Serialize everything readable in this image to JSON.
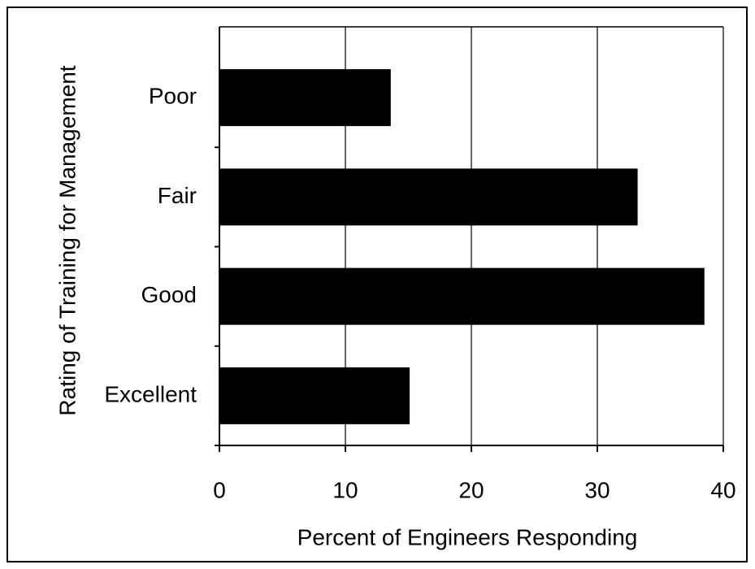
{
  "chart_data": {
    "type": "bar",
    "orientation": "horizontal",
    "xlabel": "Percent of Engineers Responding",
    "ylabel": "Rating of Training for Management",
    "categories": [
      "Poor",
      "Fair",
      "Good",
      "Excellent"
    ],
    "values": [
      13.6,
      33.2,
      38.5,
      15.1
    ],
    "color": "#000000",
    "xlim": [
      0,
      40
    ],
    "xticks": [
      0,
      10,
      20,
      30,
      40
    ],
    "grid": true
  }
}
